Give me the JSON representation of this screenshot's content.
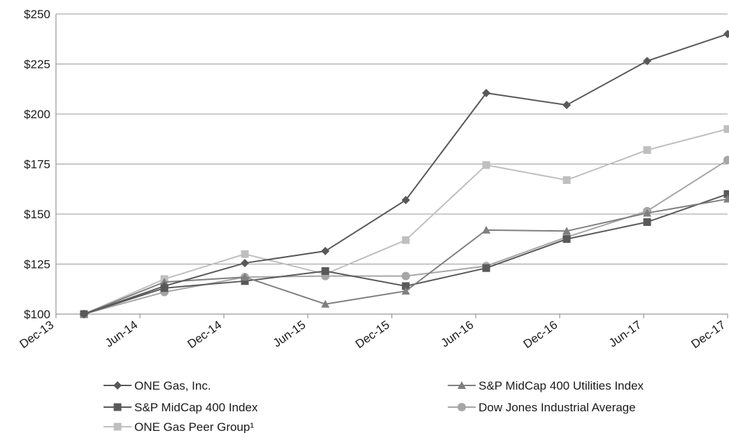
{
  "chart_data": {
    "type": "line",
    "title": "",
    "xlabel": "",
    "ylabel": "",
    "categories": [
      "Dec-13",
      "Jun-14",
      "Dec-14",
      "Jun-15",
      "Dec-15",
      "Jun-16",
      "Dec-16",
      "Jun-17",
      "Dec-17"
    ],
    "y_ticks": [
      "$100",
      "$125",
      "$150",
      "$175",
      "$200",
      "$225",
      "$250"
    ],
    "ylim": [
      100,
      250
    ],
    "y_tick_step": 25,
    "grid": true,
    "legend_position": "bottom",
    "series": [
      {
        "name": "ONE Gas, Inc.",
        "marker": "diamond",
        "color": "#595959",
        "values": [
          100,
          114,
          125.5,
          131.5,
          157,
          210.5,
          204.5,
          226.5,
          240
        ]
      },
      {
        "name": "S&P MidCap 400 Utilities Index",
        "marker": "triangle",
        "color": "#7f7f7f",
        "values": [
          100,
          116,
          118.5,
          105,
          111.5,
          142,
          141.5,
          150.5,
          157.5
        ]
      },
      {
        "name": "S&P MidCap 400 Index",
        "marker": "square",
        "color": "#595959",
        "values": [
          100,
          113,
          116.5,
          121.5,
          114,
          123,
          137.5,
          146,
          160
        ]
      },
      {
        "name": "Dow Jones Industrial Average",
        "marker": "circle",
        "color": "#a6a6a6",
        "values": [
          100,
          111,
          118.5,
          119,
          119,
          124,
          138.5,
          151.5,
          177
        ]
      },
      {
        "name": "ONE Gas Peer Group¹",
        "marker": "square",
        "color": "#bfbfbf",
        "values": [
          100,
          117.5,
          130,
          120,
          137,
          174.5,
          167,
          182,
          192.5
        ]
      }
    ]
  }
}
